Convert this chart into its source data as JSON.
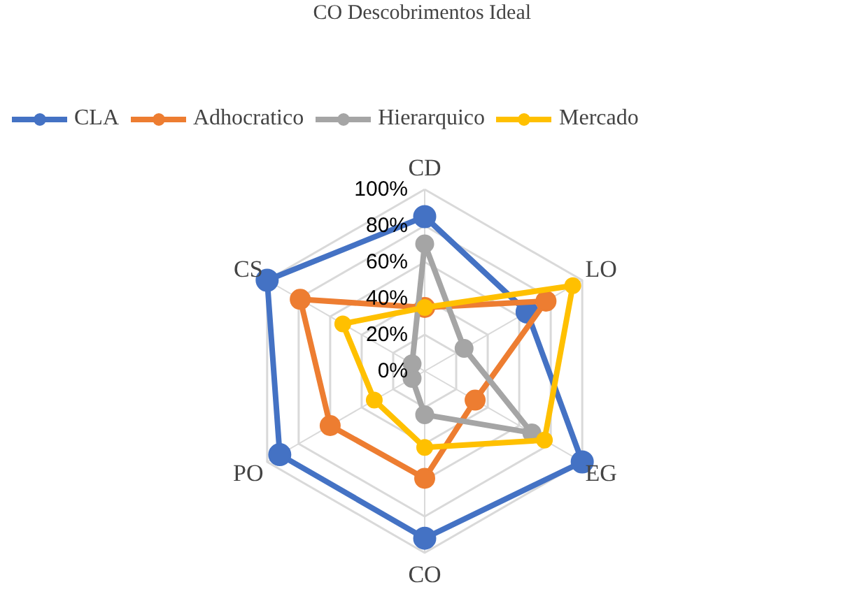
{
  "chart_data": {
    "type": "radar",
    "title": "CO Descobrimentos  Ideal",
    "categories": [
      "CD",
      "LO",
      "EG",
      "CO",
      "PO",
      "CS"
    ],
    "series": [
      {
        "name": "CLA",
        "color": "#4472c4",
        "values": [
          85,
          65,
          100,
          92,
          92,
          100
        ]
      },
      {
        "name": "Adhocratico",
        "color": "#ed7d31",
        "values": [
          35,
          77,
          32,
          59,
          60,
          79
        ]
      },
      {
        "name": "Hierarquico",
        "color": "#a5a5a5",
        "values": [
          70,
          25,
          68,
          24,
          8,
          8
        ]
      },
      {
        "name": "Mercado",
        "color": "#ffc000",
        "values": [
          35,
          94,
          76,
          42,
          32,
          52
        ]
      }
    ],
    "ylim": [
      0,
      100
    ],
    "yticks": [
      {
        "value": 0,
        "label": "0%"
      },
      {
        "value": 20,
        "label": "20%"
      },
      {
        "value": 40,
        "label": "40%"
      },
      {
        "value": 60,
        "label": "60%"
      },
      {
        "value": 80,
        "label": "80%"
      },
      {
        "value": 100,
        "label": "100%"
      }
    ],
    "grid": true,
    "legend": "top",
    "marker": "circle",
    "line_style": "solid"
  }
}
